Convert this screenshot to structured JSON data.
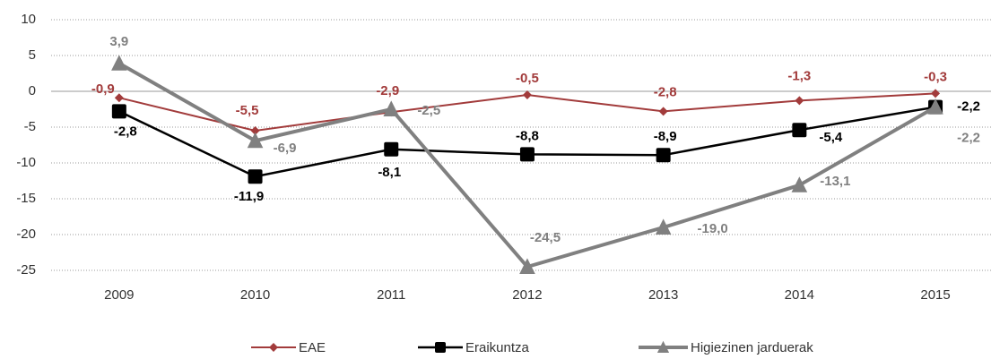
{
  "chart_data": {
    "type": "line",
    "categories": [
      "2009",
      "2010",
      "2011",
      "2012",
      "2013",
      "2014",
      "2015"
    ],
    "series": [
      {
        "name": "EAE",
        "color": "#a23b3b",
        "marker": "diamond",
        "values": [
          -0.9,
          -5.5,
          -2.9,
          -0.5,
          -2.8,
          -1.3,
          -0.3
        ],
        "value_labels": [
          "-0,9",
          "-5,5",
          "-2,9",
          "-0,5",
          "-2,8",
          "-1,3",
          "-0,3"
        ]
      },
      {
        "name": "Eraikuntza",
        "color": "#000000",
        "marker": "square",
        "values": [
          -2.8,
          -11.9,
          -8.1,
          -8.8,
          -8.9,
          -5.4,
          -2.2
        ],
        "value_labels": [
          "-2,8",
          "-11,9",
          "-8,1",
          "-8,8",
          "-8,9",
          "-5,4",
          "-2,2"
        ]
      },
      {
        "name": "Higiezinen jarduerak",
        "color": "#808080",
        "marker": "triangle",
        "values": [
          3.9,
          -6.9,
          -2.5,
          -24.5,
          -19.0,
          -13.1,
          -2.2
        ],
        "value_labels": [
          "3,9",
          "-6,9",
          "-2,5",
          "-24,5",
          "-19,0",
          "-13,1",
          "-2,2"
        ]
      }
    ],
    "ylim": [
      -25,
      10
    ],
    "yticks": [
      -25,
      -20,
      -15,
      -10,
      -5,
      0,
      5,
      10
    ],
    "grid": true,
    "legend": "bottom"
  }
}
